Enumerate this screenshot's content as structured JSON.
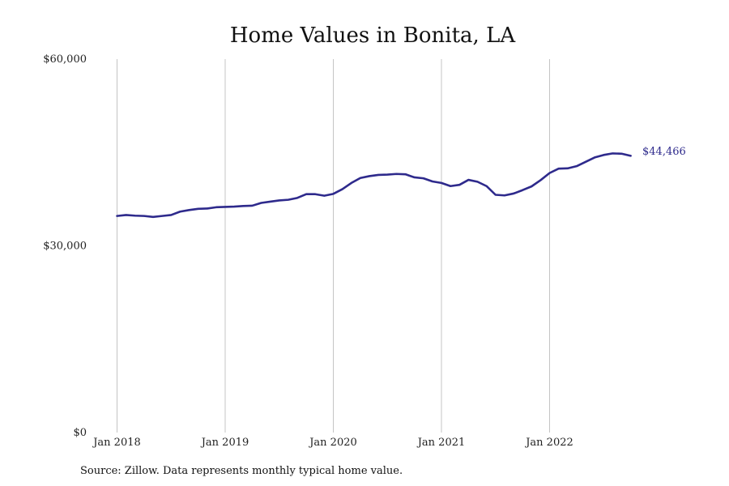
{
  "chart_data": {
    "type": "line",
    "title": "Home Values in Bonita, LA",
    "xlabel": "",
    "ylabel": "",
    "source": "Source: Zillow. Data represents monthly typical home value.",
    "ylim": [
      0,
      60000
    ],
    "yticks": [
      {
        "value": 0,
        "label": "$0"
      },
      {
        "value": 30000,
        "label": "$30,000"
      },
      {
        "value": 60000,
        "label": "$60,000"
      }
    ],
    "xticks": [
      {
        "value": "2018-01",
        "label": "Jan 2018"
      },
      {
        "value": "2019-01",
        "label": "Jan 2019"
      },
      {
        "value": "2020-01",
        "label": "Jan 2020"
      },
      {
        "value": "2021-01",
        "label": "Jan 2021"
      },
      {
        "value": "2022-01",
        "label": "Jan 2022"
      }
    ],
    "grid": "vertical",
    "end_label": "$44,466",
    "colors": {
      "line": "#2e2a8c",
      "grid": "#c4c4c4"
    },
    "series": [
      {
        "x": [
          "2018-01",
          "2018-02",
          "2018-03",
          "2018-04",
          "2018-05",
          "2018-06",
          "2018-07",
          "2018-08",
          "2018-09",
          "2018-10",
          "2018-11",
          "2018-12",
          "2019-01",
          "2019-02",
          "2019-03",
          "2019-04",
          "2019-05",
          "2019-06",
          "2019-07",
          "2019-08",
          "2019-09",
          "2019-10",
          "2019-11",
          "2019-12",
          "2020-01",
          "2020-02",
          "2020-03",
          "2020-04",
          "2020-05",
          "2020-06",
          "2020-07",
          "2020-08",
          "2020-09",
          "2020-10",
          "2020-11",
          "2020-12",
          "2021-01",
          "2021-02",
          "2021-03",
          "2021-04",
          "2021-05",
          "2021-06",
          "2021-07",
          "2021-08",
          "2021-09",
          "2021-10",
          "2021-11",
          "2021-12",
          "2022-01",
          "2022-02",
          "2022-03",
          "2022-04",
          "2022-05",
          "2022-06",
          "2022-07",
          "2022-08",
          "2022-09",
          "2022-10"
        ],
        "values": [
          34800,
          34950,
          34850,
          34800,
          34650,
          34800,
          34950,
          35500,
          35750,
          35950,
          36000,
          36200,
          36250,
          36300,
          36400,
          36450,
          36900,
          37100,
          37300,
          37400,
          37700,
          38300,
          38300,
          38050,
          38350,
          39100,
          40100,
          40900,
          41200,
          41400,
          41450,
          41550,
          41500,
          41000,
          40850,
          40350,
          40100,
          39600,
          39800,
          40600,
          40300,
          39600,
          38200,
          38100,
          38400,
          38950,
          39550,
          40550,
          41700,
          42400,
          42450,
          42800,
          43500,
          44200,
          44600,
          44850,
          44800,
          44466
        ]
      }
    ]
  }
}
